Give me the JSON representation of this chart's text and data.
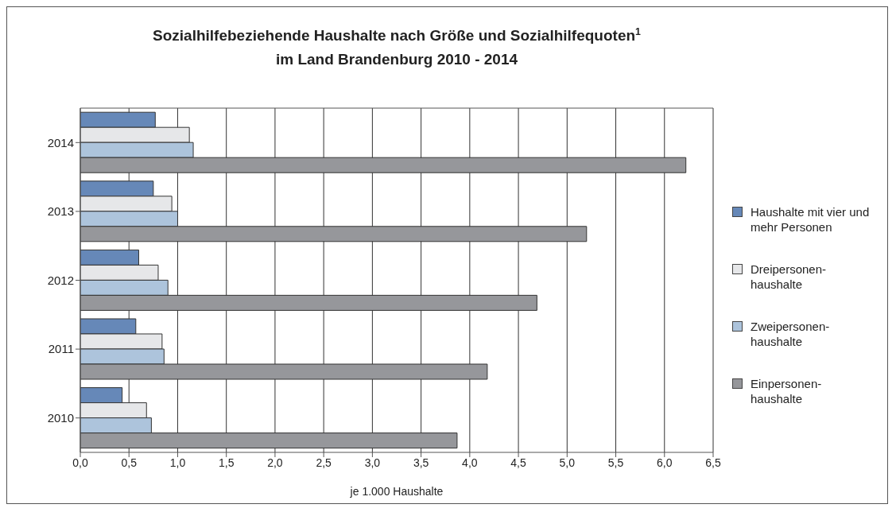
{
  "chart_data": {
    "type": "bar",
    "orientation": "horizontal",
    "title": "Sozialhilfebeziehende Haushalte nach Größe und Sozialhilfequoten$^{1}$\nim Land Brandenburg 2010 - 2014",
    "xlabel": "je 1.000 Haushalte",
    "categories": [
      "2014",
      "2013",
      "2012",
      "2011",
      "2010"
    ],
    "series": [
      {
        "name": "Haushalte mit vier und mehr Personen",
        "color": "#6688b8",
        "values": [
          0.77,
          0.75,
          0.6,
          0.57,
          0.43
        ]
      },
      {
        "name": "Dreipersonen-haushalte",
        "color": "#e6e7e9",
        "values": [
          1.12,
          0.94,
          0.8,
          0.84,
          0.68
        ]
      },
      {
        "name": "Zweipersonen-haushalte",
        "color": "#adc4dc",
        "values": [
          1.16,
          1.0,
          0.9,
          0.86,
          0.73
        ]
      },
      {
        "name": "Einpersonen-haushalte",
        "color": "#96979b",
        "values": [
          6.22,
          5.2,
          4.69,
          4.18,
          3.87
        ]
      }
    ],
    "xlim": [
      0,
      6.5
    ],
    "xticks": [
      {
        "value": 0,
        "label": "0,0"
      },
      {
        "value": 0.5,
        "label": "0,5"
      },
      {
        "value": 1,
        "label": "1,0"
      },
      {
        "value": 1.5,
        "label": "1,5"
      },
      {
        "value": 2,
        "label": "2,0"
      },
      {
        "value": 2.5,
        "label": "2,5"
      },
      {
        "value": 3,
        "label": "3,0"
      },
      {
        "value": 3.5,
        "label": "3,5"
      },
      {
        "value": 4,
        "label": "4,0"
      },
      {
        "value": 4.5,
        "label": "4,5"
      },
      {
        "value": 5,
        "label": "5,0"
      },
      {
        "value": 5.5,
        "label": "5,5"
      },
      {
        "value": 6,
        "label": "6,0"
      },
      {
        "value": 6.5,
        "label": "6,5"
      }
    ],
    "grid": "x",
    "legend": "right"
  }
}
